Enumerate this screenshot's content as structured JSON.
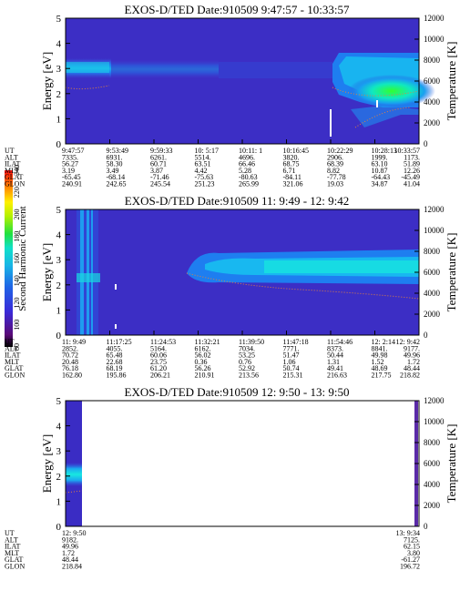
{
  "chart_data": {
    "type": "heatmap",
    "colorbar": {
      "label": "Second Harmonic Current",
      "ticks": [
        "80",
        "100",
        "120",
        "140",
        "160",
        "180",
        "200",
        "220",
        "240"
      ],
      "range": [
        80,
        240
      ]
    },
    "panels": [
      {
        "title": "EXOS-D/TED   Date:910509  9:47:57 - 10:33:57",
        "ylabel": "Energy [eV]",
        "y2label": "Temperature [K]",
        "yticks": [
          "0",
          "1",
          "2",
          "3",
          "4",
          "5"
        ],
        "ylim": [
          0,
          5
        ],
        "y2ticks": [
          "0",
          "2000",
          "4000",
          "6000",
          "8000",
          "10000",
          "12000"
        ],
        "y2lim": [
          0,
          12000
        ],
        "times": [
          "9:47:57",
          "9:53:49",
          "9:59:33",
          "10: 5:17",
          "10:11: 1",
          "10:16:45",
          "10:22:29",
          "10:28:13",
          "10:33:57"
        ],
        "rows": [
          {
            "name": "UT",
            "values": []
          },
          {
            "name": "ALT",
            "values": [
              "7335.",
              "6931.",
              "6261.",
              "5514.",
              "4696.",
              "3820.",
              "2906.",
              "1999.",
              "1173."
            ]
          },
          {
            "name": "ILAT",
            "values": [
              "56.27",
              "58.30",
              "60.71",
              "63.51",
              "66.46",
              "68.75",
              "68.39",
              "63.10",
              "51.89"
            ]
          },
          {
            "name": "MLT",
            "values": [
              "3.19",
              "3.49",
              "3.87",
              "4.42",
              "5.28",
              "6.71",
              "8.82",
              "10.87",
              "12.26"
            ]
          },
          {
            "name": "GLAT",
            "values": [
              "-65.45",
              "-68.14",
              "-71.46",
              "-75.63",
              "-80.63",
              "-84.11",
              "-77.78",
              "-64.43",
              "-45.49"
            ]
          },
          {
            "name": "GLON",
            "values": [
              "240.91",
              "242.65",
              "245.54",
              "251.23",
              "265.99",
              "321.06",
              "19.03",
              "34.87",
              "41.04"
            ]
          }
        ]
      },
      {
        "title": "EXOS-D/TED   Date:910509  11: 9:49 - 12: 9:42",
        "ylabel": "Energy [eV]",
        "y2label": "Temperature [K]",
        "yticks": [
          "0",
          "1",
          "2",
          "3",
          "4",
          "5"
        ],
        "ylim": [
          0,
          5
        ],
        "y2ticks": [
          "0",
          "2000",
          "4000",
          "6000",
          "8000",
          "10000",
          "12000"
        ],
        "y2lim": [
          0,
          12000
        ],
        "times": [
          "11: 9:49",
          "11:17:25",
          "11:24:53",
          "11:32:21",
          "11:39:50",
          "11:47:18",
          "11:54:46",
          "12: 2:14",
          "12: 9:42"
        ],
        "rows": [
          {
            "name": "UT",
            "values": []
          },
          {
            "name": "ALT",
            "values": [
              "2852.",
              "4055.",
              "5164.",
              "6162.",
              "7034.",
              "7771.",
              "8373.",
              "8841.",
              "9177."
            ]
          },
          {
            "name": "ILAT",
            "values": [
              "70.72",
              "65.48",
              "60.06",
              "56.02",
              "53.25",
              "51.47",
              "50.44",
              "49.98",
              "49.96"
            ]
          },
          {
            "name": "MLT",
            "values": [
              "20.48",
              "22.68",
              "23.75",
              "0.36",
              "0.76",
              "1.06",
              "1.31",
              "1.52",
              "1.72"
            ]
          },
          {
            "name": "GLAT",
            "values": [
              "76.18",
              "68.19",
              "61.20",
              "56.26",
              "52.92",
              "50.74",
              "49.41",
              "48.69",
              "48.44"
            ]
          },
          {
            "name": "GLON",
            "values": [
              "162.80",
              "195.86",
              "206.21",
              "210.91",
              "213.56",
              "215.31",
              "216.63",
              "217.75",
              "218.82"
            ]
          }
        ]
      },
      {
        "title": "EXOS-D/TED   Date:910509  12: 9:50 - 13: 9:50",
        "ylabel": "Energy [eV]",
        "y2label": "Temperature [K]",
        "yticks": [
          "0",
          "1",
          "2",
          "3",
          "4",
          "5"
        ],
        "ylim": [
          0,
          5
        ],
        "y2ticks": [
          "0",
          "2000",
          "4000",
          "6000",
          "8000",
          "10000",
          "12000"
        ],
        "y2lim": [
          0,
          12000
        ],
        "times": [
          "12: 9:50",
          "13: 9:34"
        ],
        "rows": [
          {
            "name": "UT",
            "values": []
          },
          {
            "name": "ALT",
            "values": [
              "9182.",
              "7125."
            ]
          },
          {
            "name": "ILAT",
            "values": [
              "49.96",
              "62.15"
            ]
          },
          {
            "name": "MLT",
            "values": [
              "1.72",
              "3.80"
            ]
          },
          {
            "name": "GLAT",
            "values": [
              "48.44",
              "-61.27"
            ]
          },
          {
            "name": "GLON",
            "values": [
              "218.84",
              "196.72"
            ]
          }
        ]
      }
    ]
  }
}
